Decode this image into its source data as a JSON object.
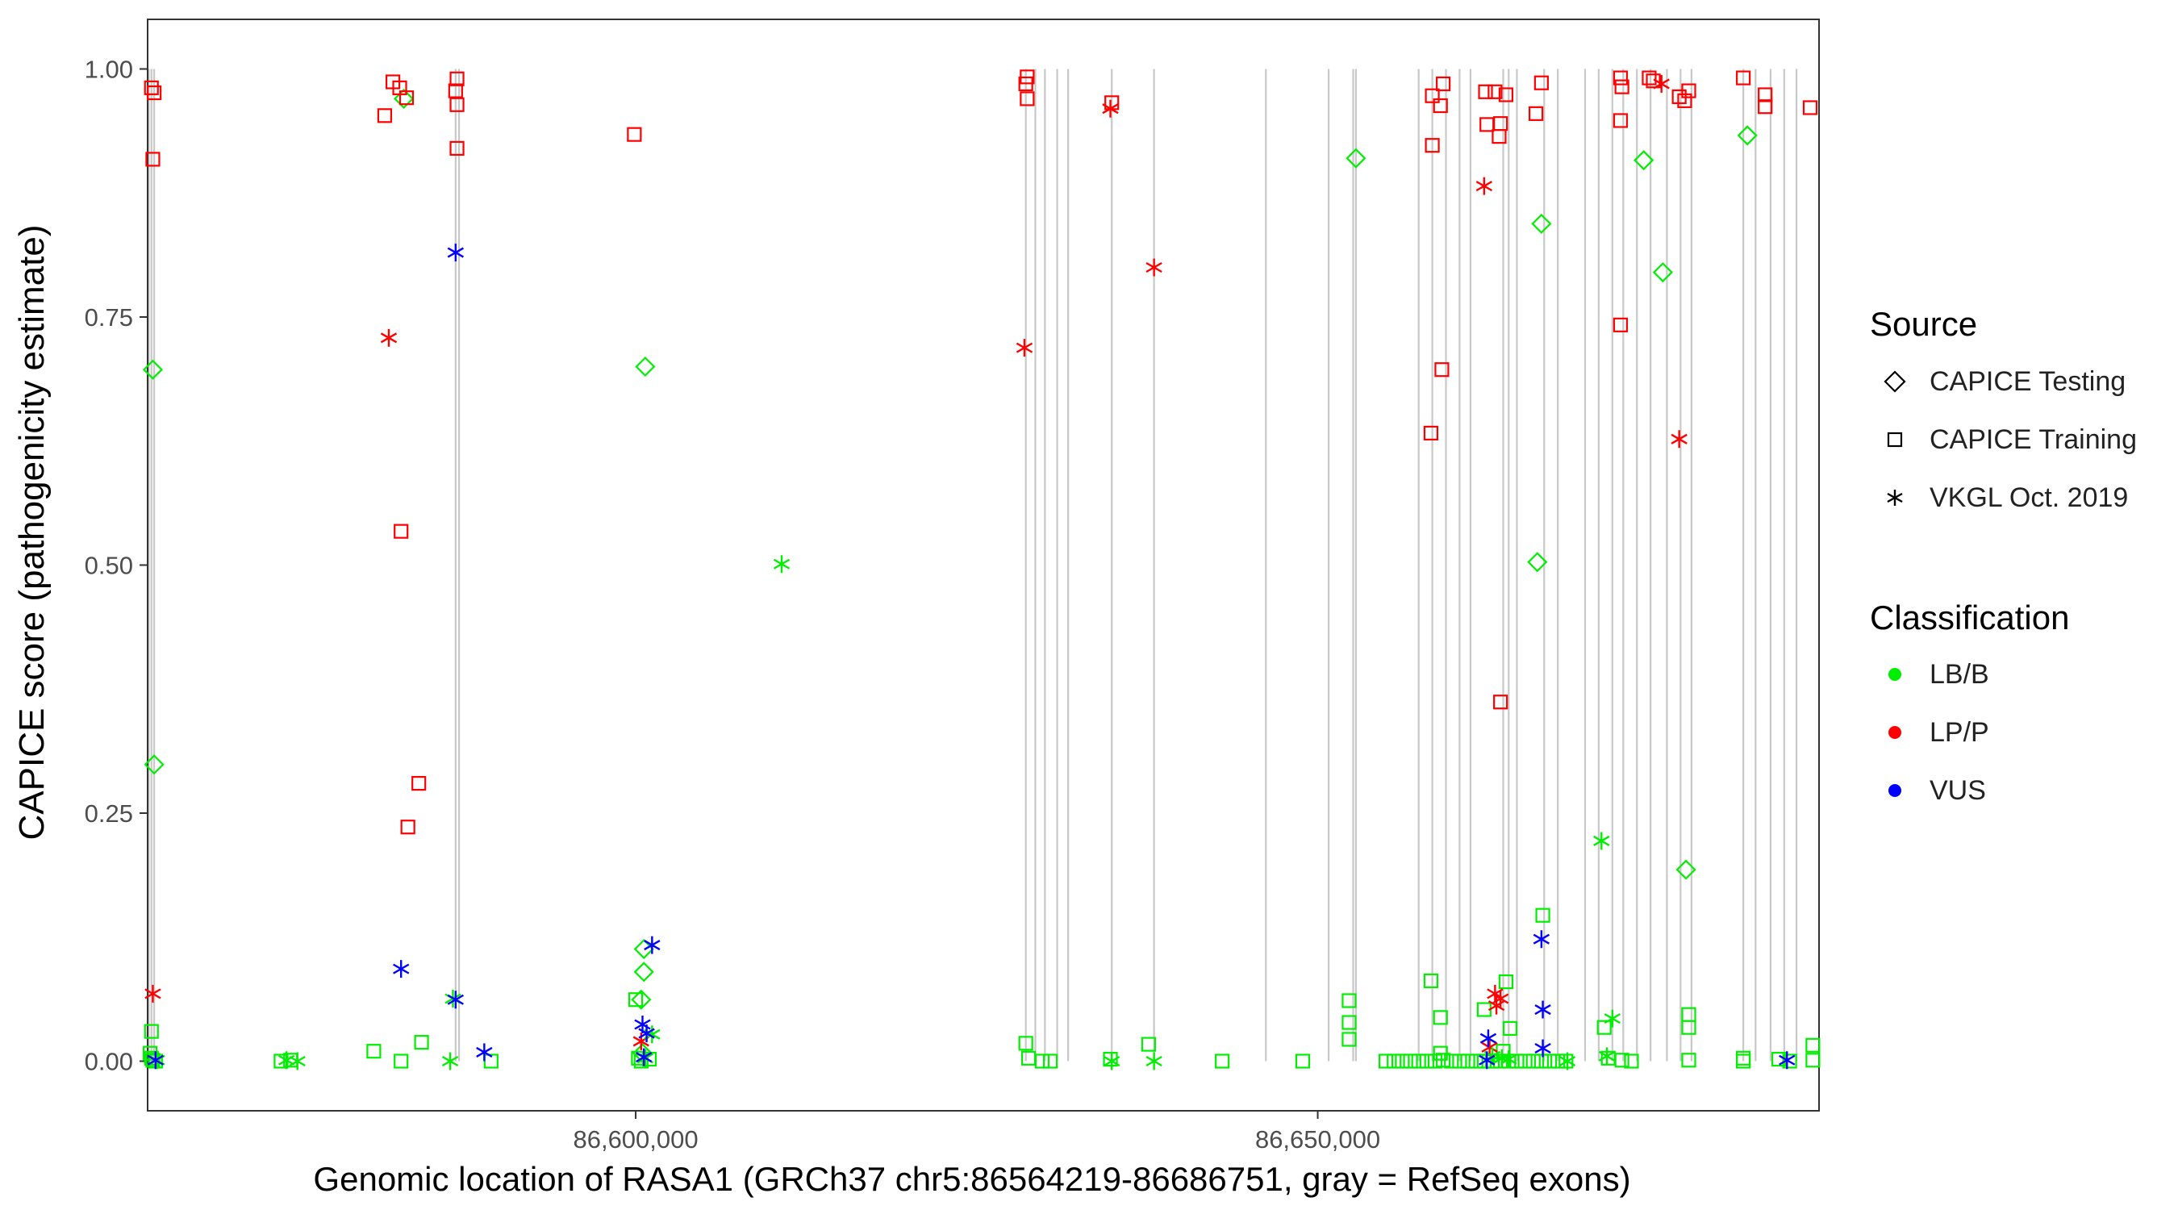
{
  "chart_data": {
    "type": "scatter",
    "xlabel": "Genomic location of RASA1 (GRCh37 chr5:86564219-86686751, gray = RefSeq exons)",
    "ylabel": "CAPICE score (pathogenicity estimate)",
    "xlim": [
      86564219,
      86686751
    ],
    "ylim": [
      -0.05,
      1.05
    ],
    "x_ticks": [
      86600000,
      86650000
    ],
    "x_tick_labels": [
      "86,600,000",
      "86,650,000"
    ],
    "y_ticks": [
      0,
      0.25,
      0.5,
      0.75,
      1
    ],
    "y_tick_labels": [
      "0.00",
      "0.25",
      "0.50",
      "0.75",
      "1.00"
    ],
    "grid": false,
    "exons": [
      86564300,
      86564500,
      86564700,
      86586800,
      86587050,
      86628600,
      86629300,
      86630000,
      86630900,
      86631700,
      86634900,
      86638000,
      86646200,
      86650800,
      86652800,
      86652600,
      86657400,
      86658400,
      86659400,
      86660400,
      86661200,
      86663600,
      86664000,
      86664600,
      86666600,
      86667600,
      86669600,
      86670600,
      86671600,
      86672400,
      86673400,
      86674400,
      86675600,
      86676600,
      86677400,
      86681200,
      86682100,
      86683200,
      86684200,
      86685100
    ],
    "legend": {
      "source_title": "Source",
      "source_items": [
        "CAPICE Testing",
        "CAPICE Training",
        "VKGL Oct. 2019"
      ],
      "class_title": "Classification",
      "class_items": [
        {
          "label": "LB/B",
          "color": "#00ee00"
        },
        {
          "label": "LP/P",
          "color": "#ff0000"
        },
        {
          "label": "VUS",
          "color": "#0000ff"
        }
      ],
      "placement": "right"
    },
    "series": [
      {
        "name": "CAPICE Testing - LB/B",
        "shape": "diamond",
        "color": "#00ee00",
        "points": [
          [
            86564600,
            0.697
          ],
          [
            86564700,
            0.299
          ],
          [
            86583000,
            0.97
          ],
          [
            86600700,
            0.7
          ],
          [
            86600600,
            0.113
          ],
          [
            86600600,
            0.09
          ],
          [
            86600400,
            0.062
          ],
          [
            86600500,
            0.008
          ],
          [
            86652800,
            0.91
          ],
          [
            86666400,
            0.844
          ],
          [
            86666100,
            0.503
          ],
          [
            86673900,
            0.908
          ],
          [
            86675300,
            0.795
          ],
          [
            86677000,
            0.193
          ],
          [
            86681500,
            0.933
          ]
        ]
      },
      {
        "name": "CAPICE Testing - LP/P",
        "shape": "diamond",
        "color": "#ff0000",
        "points": []
      },
      {
        "name": "CAPICE Training - LP/P",
        "shape": "square",
        "color": "#ff0000",
        "points": [
          [
            86564500,
            0.981
          ],
          [
            86564700,
            0.976
          ],
          [
            86564600,
            0.909
          ],
          [
            86582200,
            0.987
          ],
          [
            86582700,
            0.981
          ],
          [
            86583200,
            0.971
          ],
          [
            86581600,
            0.953
          ],
          [
            86586900,
            0.99
          ],
          [
            86586800,
            0.978
          ],
          [
            86586900,
            0.964
          ],
          [
            86586900,
            0.92
          ],
          [
            86599900,
            0.934
          ],
          [
            86582800,
            0.534
          ],
          [
            86584100,
            0.28
          ],
          [
            86583300,
            0.236
          ],
          [
            86628700,
            0.992
          ],
          [
            86628600,
            0.985
          ],
          [
            86628700,
            0.97
          ],
          [
            86634900,
            0.966
          ],
          [
            86658400,
            0.973
          ],
          [
            86659200,
            0.985
          ],
          [
            86659000,
            0.963
          ],
          [
            86658400,
            0.923
          ],
          [
            86659100,
            0.697
          ],
          [
            86658300,
            0.633
          ],
          [
            86662300,
            0.977
          ],
          [
            86663000,
            0.977
          ],
          [
            86663800,
            0.974
          ],
          [
            86663400,
            0.945
          ],
          [
            86662400,
            0.944
          ],
          [
            86663300,
            0.932
          ],
          [
            86666400,
            0.986
          ],
          [
            86666000,
            0.955
          ],
          [
            86663400,
            0.362
          ],
          [
            86672200,
            0.991
          ],
          [
            86672300,
            0.982
          ],
          [
            86672200,
            0.948
          ],
          [
            86672200,
            0.742
          ],
          [
            86674300,
            0.991
          ],
          [
            86674600,
            0.988
          ],
          [
            86676500,
            0.972
          ],
          [
            86677200,
            0.978
          ],
          [
            86676900,
            0.968
          ],
          [
            86681200,
            0.991
          ],
          [
            86682800,
            0.974
          ],
          [
            86682800,
            0.962
          ],
          [
            86686100,
            0.961
          ]
        ]
      },
      {
        "name": "CAPICE Training - LB/B",
        "shape": "square",
        "color": "#00ee00",
        "points": [
          [
            86564500,
            0.03
          ],
          [
            86564400,
            0.008
          ],
          [
            86564500,
            0.003
          ],
          [
            86564600,
            0.001
          ],
          [
            86564800,
            0.0
          ],
          [
            86574000,
            0.0
          ],
          [
            86574700,
            0.001
          ],
          [
            86580800,
            0.01
          ],
          [
            86582800,
            0.0
          ],
          [
            86584300,
            0.019
          ],
          [
            86589400,
            0.0
          ],
          [
            86600000,
            0.062
          ],
          [
            86600200,
            0.003
          ],
          [
            86600400,
            0.0
          ],
          [
            86601000,
            0.002
          ],
          [
            86628600,
            0.018
          ],
          [
            86628800,
            0.003
          ],
          [
            86629800,
            0.0
          ],
          [
            86630400,
            0.0
          ],
          [
            86634800,
            0.002
          ],
          [
            86637600,
            0.017
          ],
          [
            86643000,
            0.0
          ],
          [
            86652300,
            0.061
          ],
          [
            86652300,
            0.039
          ],
          [
            86652300,
            0.022
          ],
          [
            86648900,
            0.0
          ],
          [
            86658300,
            0.081
          ],
          [
            86659000,
            0.044
          ],
          [
            86655000,
            0.0
          ],
          [
            86655600,
            0.0
          ],
          [
            86656200,
            0.0
          ],
          [
            86656800,
            0.0
          ],
          [
            86657400,
            0.0
          ],
          [
            86658000,
            0.0
          ],
          [
            86658600,
            0.0
          ],
          [
            86659200,
            0.001
          ],
          [
            86659800,
            0.0
          ],
          [
            86660400,
            0.0
          ],
          [
            86661000,
            0.0
          ],
          [
            86661600,
            0.0
          ],
          [
            86662200,
            0.0
          ],
          [
            86662800,
            0.0
          ],
          [
            86663400,
            0.0
          ],
          [
            86664000,
            0.0
          ],
          [
            86664600,
            0.0
          ],
          [
            86665200,
            0.0
          ],
          [
            86665800,
            0.0
          ],
          [
            86666400,
            0.0
          ],
          [
            86667000,
            0.0
          ],
          [
            86667600,
            0.0
          ],
          [
            86668200,
            0.0
          ],
          [
            86659000,
            0.008
          ],
          [
            86662200,
            0.052
          ],
          [
            86663800,
            0.08
          ],
          [
            86664100,
            0.033
          ],
          [
            86663600,
            0.01
          ],
          [
            86666500,
            0.147
          ],
          [
            86671000,
            0.034
          ],
          [
            86671300,
            0.003
          ],
          [
            86672300,
            0.001
          ],
          [
            86673000,
            0.0
          ],
          [
            86677200,
            0.047
          ],
          [
            86677200,
            0.034
          ],
          [
            86677200,
            0.001
          ],
          [
            86681200,
            0.003
          ],
          [
            86681200,
            0.0
          ],
          [
            86683800,
            0.002
          ],
          [
            86684600,
            0.0
          ],
          [
            86686300,
            0.016
          ],
          [
            86686300,
            0.001
          ]
        ]
      },
      {
        "name": "CAPICE Training - VUS",
        "shape": "square",
        "color": "#0000ff",
        "points": []
      },
      {
        "name": "VKGL Oct. 2019 - LP/P",
        "shape": "asterisk",
        "color": "#ff0000",
        "points": [
          [
            86564600,
            0.068
          ],
          [
            86581900,
            0.729
          ],
          [
            86628500,
            0.719
          ],
          [
            86634800,
            0.96
          ],
          [
            86638000,
            0.8
          ],
          [
            86662200,
            0.882
          ],
          [
            86663000,
            0.068
          ],
          [
            86663400,
            0.063
          ],
          [
            86663100,
            0.056
          ],
          [
            86662600,
            0.014
          ],
          [
            86675200,
            0.985
          ],
          [
            86676500,
            0.627
          ],
          [
            86600400,
            0.02
          ]
        ]
      },
      {
        "name": "VKGL Oct. 2019 - LB/B",
        "shape": "asterisk",
        "color": "#00ee00",
        "points": [
          [
            86564900,
            0.001
          ],
          [
            86574400,
            0.001
          ],
          [
            86575200,
            0.0
          ],
          [
            86586600,
            0.063
          ],
          [
            86586400,
            0.0
          ],
          [
            86610700,
            0.501
          ],
          [
            86601200,
            0.027
          ],
          [
            86600700,
            0.003
          ],
          [
            86634900,
            0.0
          ],
          [
            86638000,
            0.0
          ],
          [
            86662800,
            0.005
          ],
          [
            86663500,
            0.003
          ],
          [
            86664000,
            0.002
          ],
          [
            86668300,
            0.0
          ],
          [
            86670800,
            0.222
          ],
          [
            86671600,
            0.043
          ],
          [
            86671200,
            0.005
          ]
        ]
      },
      {
        "name": "VKGL Oct. 2019 - VUS",
        "shape": "asterisk",
        "color": "#0000ff",
        "points": [
          [
            86564800,
            0.001
          ],
          [
            86586800,
            0.815
          ],
          [
            86582800,
            0.093
          ],
          [
            86586800,
            0.062
          ],
          [
            86588900,
            0.009
          ],
          [
            86601200,
            0.117
          ],
          [
            86600500,
            0.037
          ],
          [
            86600800,
            0.028
          ],
          [
            86600600,
            0.004
          ],
          [
            86662500,
            0.023
          ],
          [
            86662400,
            0.001
          ],
          [
            86666400,
            0.123
          ],
          [
            86666500,
            0.052
          ],
          [
            86666500,
            0.013
          ],
          [
            86684400,
            0.001
          ]
        ]
      }
    ]
  }
}
